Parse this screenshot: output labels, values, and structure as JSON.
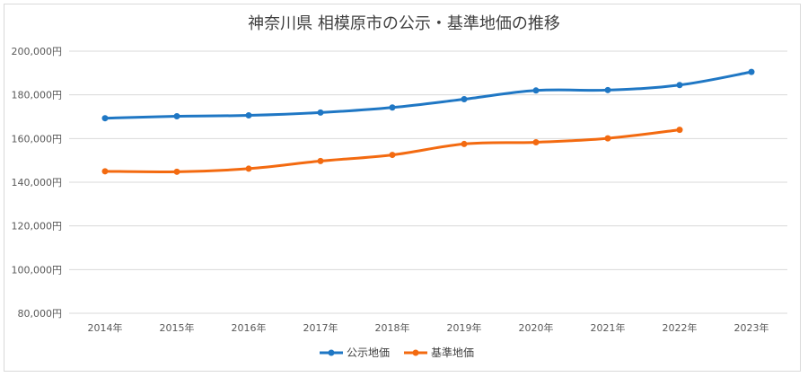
{
  "chart_data": {
    "type": "line",
    "title": "神奈川県 相模原市の公示・基準地価の推移",
    "categories": [
      "2014年",
      "2015年",
      "2016年",
      "2017年",
      "2018年",
      "2019年",
      "2020年",
      "2021年",
      "2022年",
      "2023年"
    ],
    "y_ticks": [
      "80,000円",
      "100,000円",
      "120,000円",
      "140,000円",
      "160,000円",
      "180,000円",
      "200,000円"
    ],
    "ylim": [
      80000,
      200000
    ],
    "grid": true,
    "legend_position": "bottom",
    "series": [
      {
        "name": "公示地価",
        "color": "#1f77c4",
        "values": [
          169300,
          170200,
          170600,
          171900,
          174200,
          178000,
          182000,
          182200,
          184500,
          190500
        ]
      },
      {
        "name": "基準地価",
        "color": "#f36a10",
        "values": [
          145000,
          144800,
          146200,
          149700,
          152500,
          157500,
          158300,
          160100,
          164000,
          null
        ]
      }
    ]
  }
}
